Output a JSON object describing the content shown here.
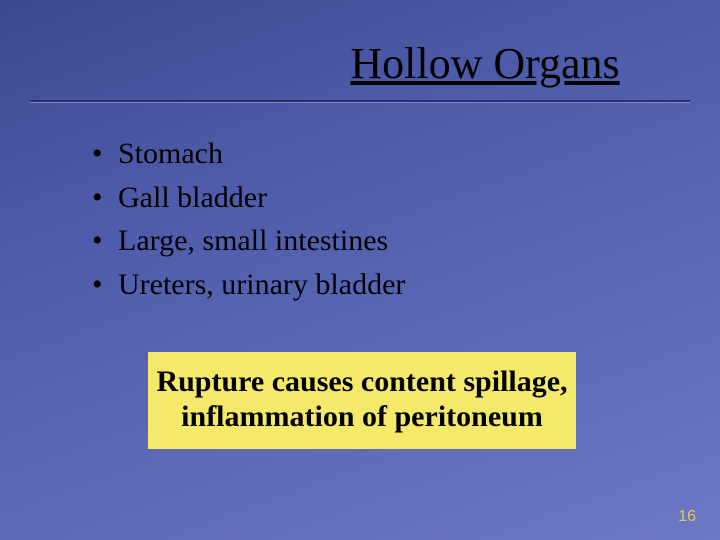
{
  "slide": {
    "title": "Hollow Organs",
    "title_color": "#000000",
    "title_fontsize": 44,
    "title_underline": true,
    "background_gradient": [
      "#3b4a8f",
      "#4c5aa8",
      "#5a67b5",
      "#6b78c5"
    ],
    "rule_color_top": "#2a2f6a",
    "rule_color_bottom": "#808bc8",
    "bullets": {
      "items": [
        "Stomach",
        "Gall bladder",
        "Large, small intestines",
        "Ureters, urinary bladder"
      ],
      "bullet_glyph": "•",
      "text_color": "#000000",
      "fontsize": 30
    },
    "callout": {
      "text": "Rupture causes content spillage, inflammation of peritoneum",
      "background_color": "#f5e96a",
      "text_color": "#000000",
      "fontsize": 30,
      "font_weight": "bold"
    },
    "page_number": "16",
    "page_number_color": "#e6c85a"
  }
}
